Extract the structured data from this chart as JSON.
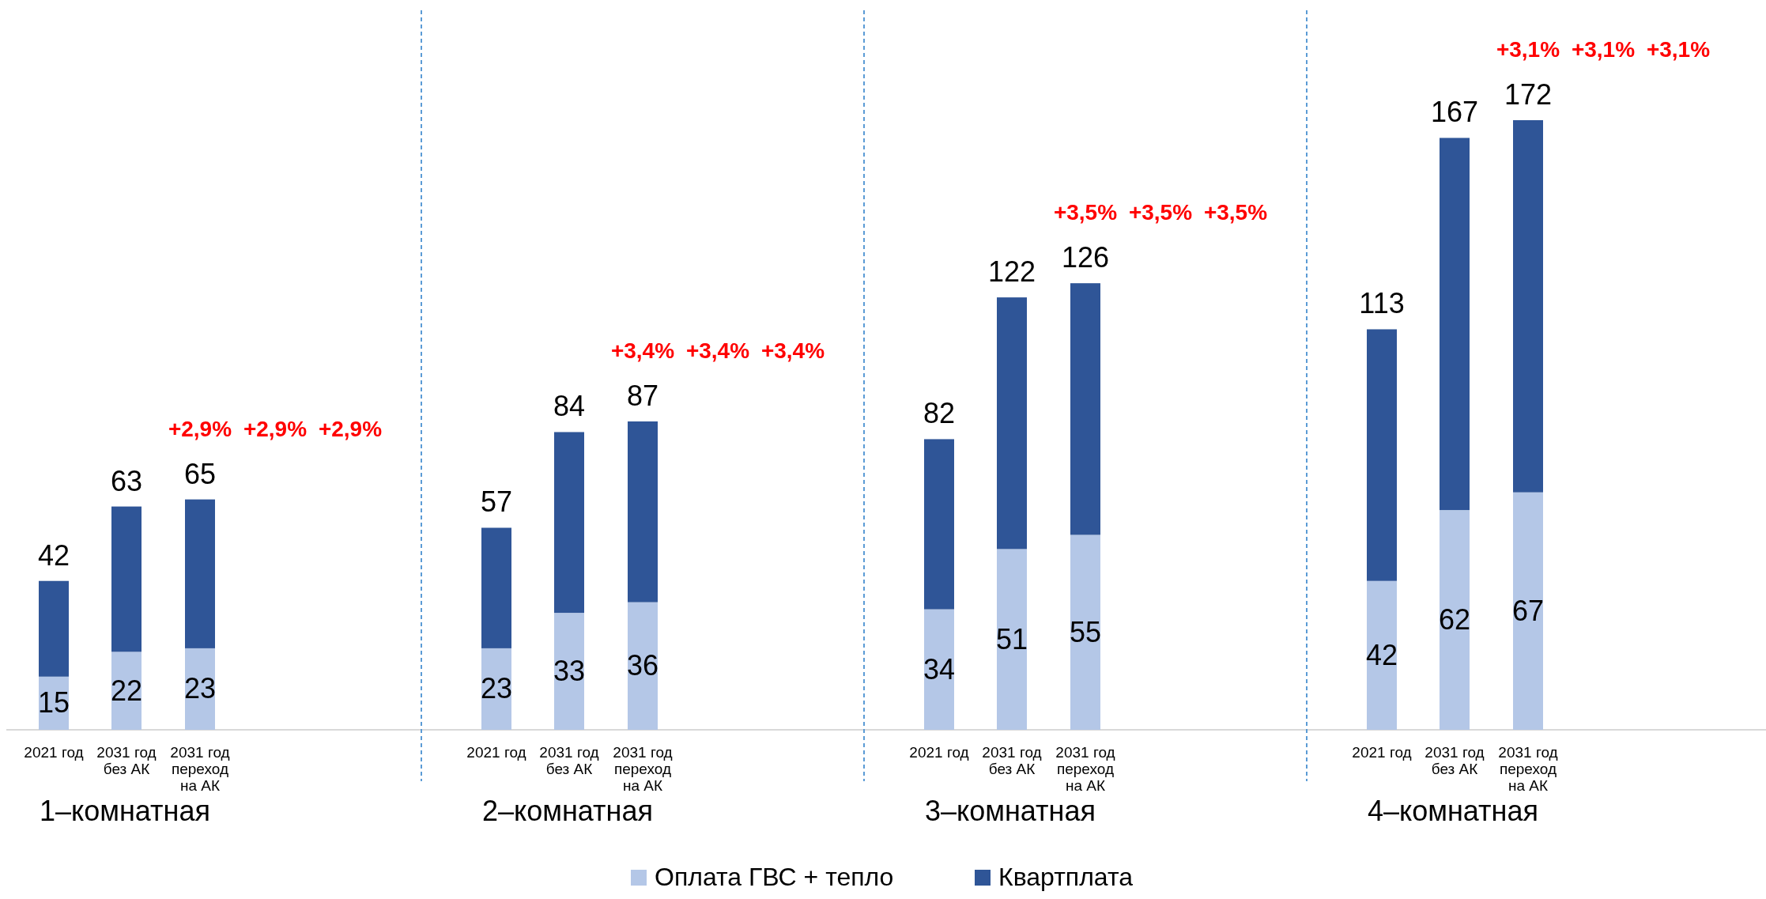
{
  "chart_data": [
    {
      "type": "bar",
      "stacked": true,
      "xlabel": "1–комнатная",
      "categories": [
        "2021 год",
        "2031 год без АК",
        "2031 год переход на АК"
      ],
      "legend": "bottom",
      "series": [
        {
          "name": "Оплата ГВС + тепло",
          "color": "#b4c7e7",
          "values": [
            15,
            22,
            23
          ],
          "value_labels": [
            "15",
            "22",
            "23"
          ]
        },
        {
          "name": "Квартплата",
          "color": "#2f5597",
          "values": [
            27,
            41,
            42
          ]
        }
      ],
      "totals": [
        "42",
        "63",
        "65"
      ],
      "annotations": [
        "+2,9%",
        "+2,9%",
        "+2,9%"
      ]
    },
    {
      "type": "bar",
      "stacked": true,
      "xlabel": "2–комнатная",
      "categories": [
        "2021 год",
        "2031 год без АК",
        "2031 год переход на АК"
      ],
      "series": [
        {
          "color": "#b4c7e7",
          "values": [
            23,
            33,
            36
          ],
          "value_labels": [
            "23",
            "33",
            "36"
          ]
        },
        {
          "color": "#2f5597",
          "values": [
            34,
            51,
            51
          ]
        }
      ],
      "totals": [
        "57",
        "84",
        "87"
      ],
      "annotations": [
        "+3,4%",
        "+3,4%",
        "+3,4%"
      ]
    },
    {
      "type": "bar",
      "stacked": true,
      "xlabel": "3–комнатная",
      "categories": [
        "2021 год",
        "2031 год без АК",
        "2031 год переход на АК"
      ],
      "series": [
        {
          "color": "#b4c7e7",
          "values": [
            34,
            51,
            55
          ],
          "value_labels": [
            "34",
            "51",
            "55"
          ]
        },
        {
          "color": "#2f5597",
          "values": [
            48,
            71,
            71
          ]
        }
      ],
      "totals": [
        "82",
        "122",
        "126"
      ],
      "annotations": [
        "+3,5%",
        "+3,5%",
        "+3,5%"
      ]
    },
    {
      "type": "bar",
      "stacked": true,
      "xlabel": "4–комнатная",
      "categories": [
        "2021 год",
        "2031 год без АК",
        "2031 год переход на АК"
      ],
      "series": [
        {
          "color": "#b4c7e7",
          "values": [
            42,
            62,
            67
          ],
          "value_labels": [
            "42",
            "62",
            "67"
          ]
        },
        {
          "color": "#2f5597",
          "values": [
            71,
            105,
            105
          ]
        }
      ],
      "totals": [
        "113",
        "167",
        "172"
      ],
      "annotations": [
        "+3,1%",
        "+3,1%",
        "+3,1%"
      ]
    }
  ]
}
